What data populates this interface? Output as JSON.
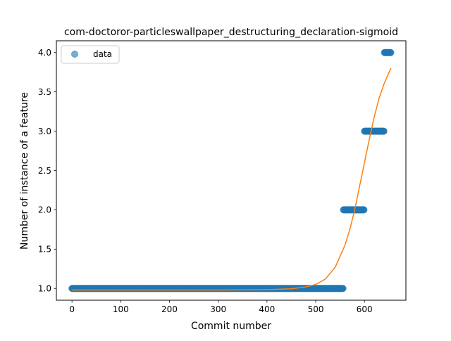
{
  "chart_data": {
    "type": "scatter",
    "title": "com-doctoror-particleswallpaper_destructuring_declaration-sigmoid",
    "xlabel": "Commit number",
    "ylabel": "Number of instance of a feature",
    "xlim": [
      -32,
      685
    ],
    "ylim": [
      0.85,
      4.15
    ],
    "xticks": [
      0,
      100,
      200,
      300,
      400,
      500,
      600
    ],
    "yticks": [
      1.0,
      1.5,
      2.0,
      2.5,
      3.0,
      3.5,
      4.0
    ],
    "grid": false,
    "legend": {
      "placement": "top-left",
      "entries": [
        "data"
      ]
    },
    "series": [
      {
        "name": "data",
        "kind": "points",
        "color": "#1f77b4",
        "alpha": 0.6,
        "segments": [
          {
            "y": 1,
            "x_from": 0,
            "x_to": 556
          },
          {
            "y": 2,
            "x_from": 557,
            "x_to": 599
          },
          {
            "y": 3,
            "x_from": 600,
            "x_to": 640
          },
          {
            "y": 4,
            "x_from": 641,
            "x_to": 654
          }
        ]
      },
      {
        "kind": "line",
        "color": "#ff7f0e",
        "x": [
          0,
          300,
          400,
          450,
          480,
          500,
          520,
          540,
          560,
          570,
          580,
          590,
          600,
          610,
          620,
          630,
          640,
          654
        ],
        "y": [
          0.98,
          0.98,
          0.985,
          0.995,
          1.02,
          1.05,
          1.12,
          1.27,
          1.55,
          1.75,
          2.0,
          2.3,
          2.6,
          2.9,
          3.18,
          3.42,
          3.6,
          3.8
        ]
      }
    ]
  }
}
